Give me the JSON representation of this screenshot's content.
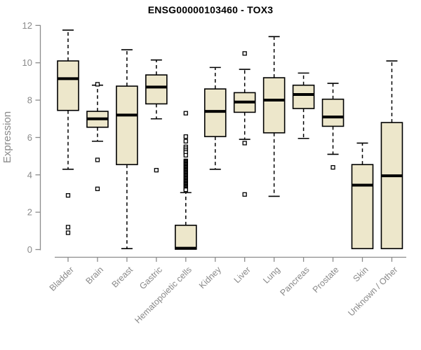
{
  "colors": {
    "box_fill": "#ede7cb",
    "box_stroke": "#000000",
    "median": "#000000",
    "whisker": "#000000",
    "outlier_fill": "#ffffff",
    "axis": "#8c8c8c",
    "tick_label": "#898989",
    "title": "#000000",
    "background": "#ffffff"
  },
  "chart_data": {
    "type": "boxplot",
    "title": "ENSG00000103460 - TOX3",
    "xlabel": "",
    "ylabel": "Expression",
    "ylim": [
      0,
      12
    ],
    "yticks": [
      0,
      2,
      4,
      6,
      8,
      10,
      12
    ],
    "grid": false,
    "legend": null,
    "categories": [
      "Bladder",
      "Brain",
      "Breast",
      "Gastric",
      "Hematopoietic cells",
      "Kidney",
      "Liver",
      "Lung",
      "Pancreas",
      "Prostate",
      "Skin",
      "Unknown / Other"
    ],
    "boxes": [
      {
        "category": "Bladder",
        "low": 4.3,
        "q1": 7.45,
        "median": 9.15,
        "q3": 10.1,
        "high": 11.75,
        "outliers": [
          2.9,
          1.2,
          0.9
        ]
      },
      {
        "category": "Brain",
        "low": 5.8,
        "q1": 6.55,
        "median": 7.0,
        "q3": 7.4,
        "high": 8.8,
        "outliers": [
          8.85,
          4.8,
          3.25
        ]
      },
      {
        "category": "Breast",
        "low": 0.05,
        "q1": 4.55,
        "median": 7.2,
        "q3": 8.75,
        "high": 10.7,
        "outliers": []
      },
      {
        "category": "Gastric",
        "low": 7.0,
        "q1": 7.8,
        "median": 8.7,
        "q3": 9.35,
        "high": 10.15,
        "outliers": [
          4.25
        ]
      },
      {
        "category": "Hematopoietic cells",
        "low": 0.02,
        "q1": 0.02,
        "median": 0.07,
        "q3": 1.3,
        "high": 3.05,
        "outliers": [
          7.3,
          6.05,
          5.8,
          5.5,
          5.4,
          5.3,
          5.2,
          5.05,
          4.75,
          4.7,
          4.65,
          4.6,
          4.55,
          4.5,
          4.45,
          4.4,
          4.35,
          4.3,
          4.25,
          4.2,
          4.15,
          4.1,
          4.05,
          4.0,
          3.95,
          3.9,
          3.85,
          3.8,
          3.75,
          3.7,
          3.65,
          3.6,
          3.55,
          3.5,
          3.45,
          3.4,
          3.35,
          3.3,
          3.25,
          3.2
        ]
      },
      {
        "category": "Kidney",
        "low": 4.3,
        "q1": 6.05,
        "median": 7.4,
        "q3": 8.6,
        "high": 9.75,
        "outliers": []
      },
      {
        "category": "Liver",
        "low": 5.9,
        "q1": 7.35,
        "median": 7.9,
        "q3": 8.4,
        "high": 9.65,
        "outliers": [
          10.5,
          5.7,
          2.95
        ]
      },
      {
        "category": "Lung",
        "low": 2.85,
        "q1": 6.25,
        "median": 8.0,
        "q3": 9.2,
        "high": 11.4,
        "outliers": []
      },
      {
        "category": "Pancreas",
        "low": 5.95,
        "q1": 7.55,
        "median": 8.3,
        "q3": 8.8,
        "high": 9.45,
        "outliers": []
      },
      {
        "category": "Prostate",
        "low": 5.1,
        "q1": 6.6,
        "median": 7.1,
        "q3": 8.05,
        "high": 8.9,
        "outliers": [
          4.4
        ]
      },
      {
        "category": "Skin",
        "low": 0.05,
        "q1": 0.05,
        "median": 3.45,
        "q3": 4.55,
        "high": 5.7,
        "outliers": []
      },
      {
        "category": "Unknown / Other",
        "low": 0.05,
        "q1": 0.05,
        "median": 3.95,
        "q3": 6.8,
        "high": 10.1,
        "outliers": []
      }
    ]
  }
}
